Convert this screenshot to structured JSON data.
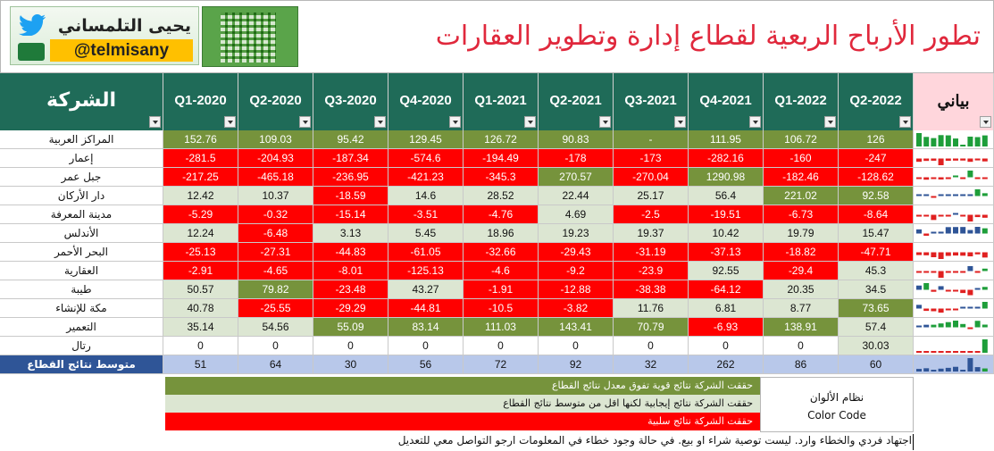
{
  "header": {
    "title": "تطور الأرباح الربعية لقطاع إدارة وتطوير العقارات",
    "brand_name": "يحيى التلمساني",
    "brand_handle": "@telmisany"
  },
  "colors": {
    "strong": "#76933c",
    "positive": "#dce6d2",
    "negative": "#ff0000",
    "header_bg": "#1f6b58",
    "avg_label_bg": "#2f5597",
    "avg_bg": "#b8c8ea",
    "title": "#e0283c"
  },
  "table": {
    "company_header": "الشركة",
    "spark_header": "بياني",
    "quarters": [
      "Q1-2020",
      "Q2-2020",
      "Q3-2020",
      "Q4-2020",
      "Q1-2021",
      "Q2-2021",
      "Q3-2021",
      "Q4-2021",
      "Q1-2022",
      "Q2-2022"
    ],
    "rows": [
      {
        "name": "المراكز العربية",
        "values": [
          "152.76",
          "109.03",
          "95.42",
          "129.45",
          "126.72",
          "90.83",
          "-",
          "111.95",
          "106.72",
          "126"
        ],
        "classes": [
          "s",
          "s",
          "s",
          "s",
          "s",
          "s",
          "s",
          "s",
          "s",
          "s"
        ]
      },
      {
        "name": "إعمار",
        "values": [
          "-281.5",
          "-204.93",
          "-187.34",
          "-574.6",
          "-194.49",
          "-178",
          "-173",
          "-282.16",
          "-160",
          "-247"
        ],
        "classes": [
          "n",
          "n",
          "n",
          "n",
          "n",
          "n",
          "n",
          "n",
          "n",
          "n"
        ]
      },
      {
        "name": "جبل عمر",
        "values": [
          "-217.25",
          "-465.18",
          "-236.95",
          "-421.23",
          "-345.3",
          "270.57",
          "-270.04",
          "1290.98",
          "-182.46",
          "-128.62"
        ],
        "classes": [
          "n",
          "n",
          "n",
          "n",
          "n",
          "s",
          "n",
          "s",
          "n",
          "n"
        ]
      },
      {
        "name": "دار الأركان",
        "values": [
          "12.42",
          "10.37",
          "-18.59",
          "14.6",
          "28.52",
          "22.44",
          "25.17",
          "56.4",
          "221.02",
          "92.58"
        ],
        "classes": [
          "p",
          "p",
          "n",
          "p",
          "p",
          "p",
          "p",
          "p",
          "s",
          "s"
        ]
      },
      {
        "name": "مدينة المعرفة",
        "values": [
          "-5.29",
          "-0.32",
          "-15.14",
          "-3.51",
          "-4.76",
          "4.69",
          "-2.5",
          "-19.51",
          "-6.73",
          "-8.64"
        ],
        "classes": [
          "n",
          "n",
          "n",
          "n",
          "n",
          "p",
          "n",
          "n",
          "n",
          "n"
        ]
      },
      {
        "name": "الأندلس",
        "values": [
          "12.24",
          "-6.48",
          "3.13",
          "5.45",
          "18.96",
          "19.23",
          "19.37",
          "10.42",
          "19.79",
          "15.47"
        ],
        "classes": [
          "p",
          "n",
          "p",
          "p",
          "p",
          "p",
          "p",
          "p",
          "p",
          "p"
        ]
      },
      {
        "name": "البحر الأحمر",
        "values": [
          "-25.13",
          "-27.31",
          "-44.83",
          "-61.05",
          "-32.66",
          "-29.43",
          "-31.19",
          "-37.13",
          "-18.82",
          "-47.71"
        ],
        "classes": [
          "n",
          "n",
          "n",
          "n",
          "n",
          "n",
          "n",
          "n",
          "n",
          "n"
        ]
      },
      {
        "name": "العقارية",
        "values": [
          "-2.91",
          "-4.65",
          "-8.01",
          "-125.13",
          "-4.6",
          "-9.2",
          "-23.9",
          "92.55",
          "-29.4",
          "45.3"
        ],
        "classes": [
          "n",
          "n",
          "n",
          "n",
          "n",
          "n",
          "n",
          "p",
          "n",
          "p"
        ]
      },
      {
        "name": "طيبة",
        "values": [
          "50.57",
          "79.82",
          "-23.48",
          "43.27",
          "-1.91",
          "-12.88",
          "-38.38",
          "-64.12",
          "20.35",
          "34.5"
        ],
        "classes": [
          "p",
          "s",
          "n",
          "p",
          "n",
          "n",
          "n",
          "n",
          "p",
          "p"
        ]
      },
      {
        "name": "مكة للإنشاء",
        "values": [
          "40.78",
          "-25.55",
          "-29.29",
          "-44.81",
          "-10.5",
          "-3.82",
          "11.76",
          "6.81",
          "8.77",
          "73.65"
        ],
        "classes": [
          "p",
          "n",
          "n",
          "n",
          "n",
          "n",
          "p",
          "p",
          "p",
          "s"
        ]
      },
      {
        "name": "التعمير",
        "values": [
          "35.14",
          "54.56",
          "55.09",
          "83.14",
          "111.03",
          "143.41",
          "70.79",
          "-6.93",
          "138.91",
          "57.4"
        ],
        "classes": [
          "p",
          "p",
          "s",
          "s",
          "s",
          "s",
          "s",
          "n",
          "s",
          "p"
        ]
      },
      {
        "name": "رتال",
        "values": [
          "0",
          "0",
          "0",
          "0",
          "0",
          "0",
          "0",
          "0",
          "0",
          "30.03"
        ],
        "classes": [
          "w",
          "w",
          "w",
          "w",
          "w",
          "w",
          "w",
          "w",
          "w",
          "p"
        ]
      }
    ],
    "average": {
      "name": "متوسط نتائج القطاع",
      "values": [
        "51",
        "64",
        "30",
        "56",
        "72",
        "92",
        "32",
        "262",
        "86",
        "60"
      ]
    }
  },
  "legend": {
    "box_title": "نظام الألوان",
    "box_subtitle": "Color Code",
    "items": [
      "حققت الشركة نتائج قوية تفوق معدل نتائج القطاع",
      "حققت الشركة نتائج إيجابية لكنها اقل من متوسط نتائج القطاع",
      "حققت الشركة نتائج سلبية"
    ]
  },
  "disclaimer": "اجتهاد فردي والخطاء وارد. ليست توصية شراء او بيع. في حالة وجود خطاء في المعلومات ارجو التواصل معي للتعديل"
}
